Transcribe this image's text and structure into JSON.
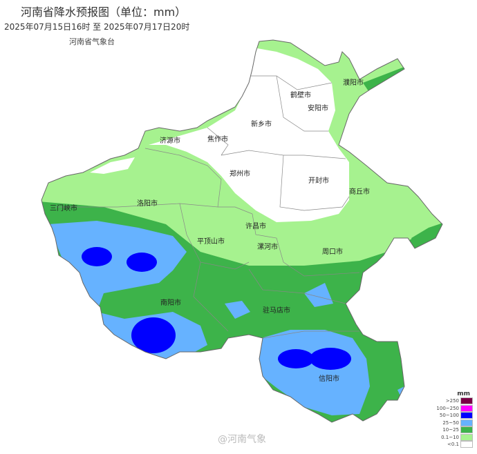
{
  "header": {
    "title": "河南省降水预报图（单位：mm）",
    "period": "2025年07月15日16时  至  2025年07月17日20时",
    "issuer": "河南省气象台"
  },
  "cities": [
    "濮阳市",
    "鹤壁市",
    "安阳市",
    "新乡市",
    "焦作市",
    "济源市",
    "郑州市",
    "开封市",
    "商丘市",
    "三门峡市",
    "洛阳市",
    "许昌市",
    "平顶山市",
    "漯河市",
    "周口市",
    "南阳市",
    "驻马店市",
    "信阳市"
  ],
  "legend": {
    "unit": "mm",
    "items": [
      {
        "label": ">250",
        "color": "#7a0045"
      },
      {
        "label": "100~250",
        "color": "#ff00ff"
      },
      {
        "label": "50~100",
        "color": "#0000ff"
      },
      {
        "label": "25~50",
        "color": "#66b2ff"
      },
      {
        "label": "10~25",
        "color": "#3db34a"
      },
      {
        "label": "0.1~10",
        "color": "#a6f28f"
      },
      {
        "label": "<0.1",
        "color": "#ffffff"
      }
    ]
  },
  "watermark": "@河南气象"
}
